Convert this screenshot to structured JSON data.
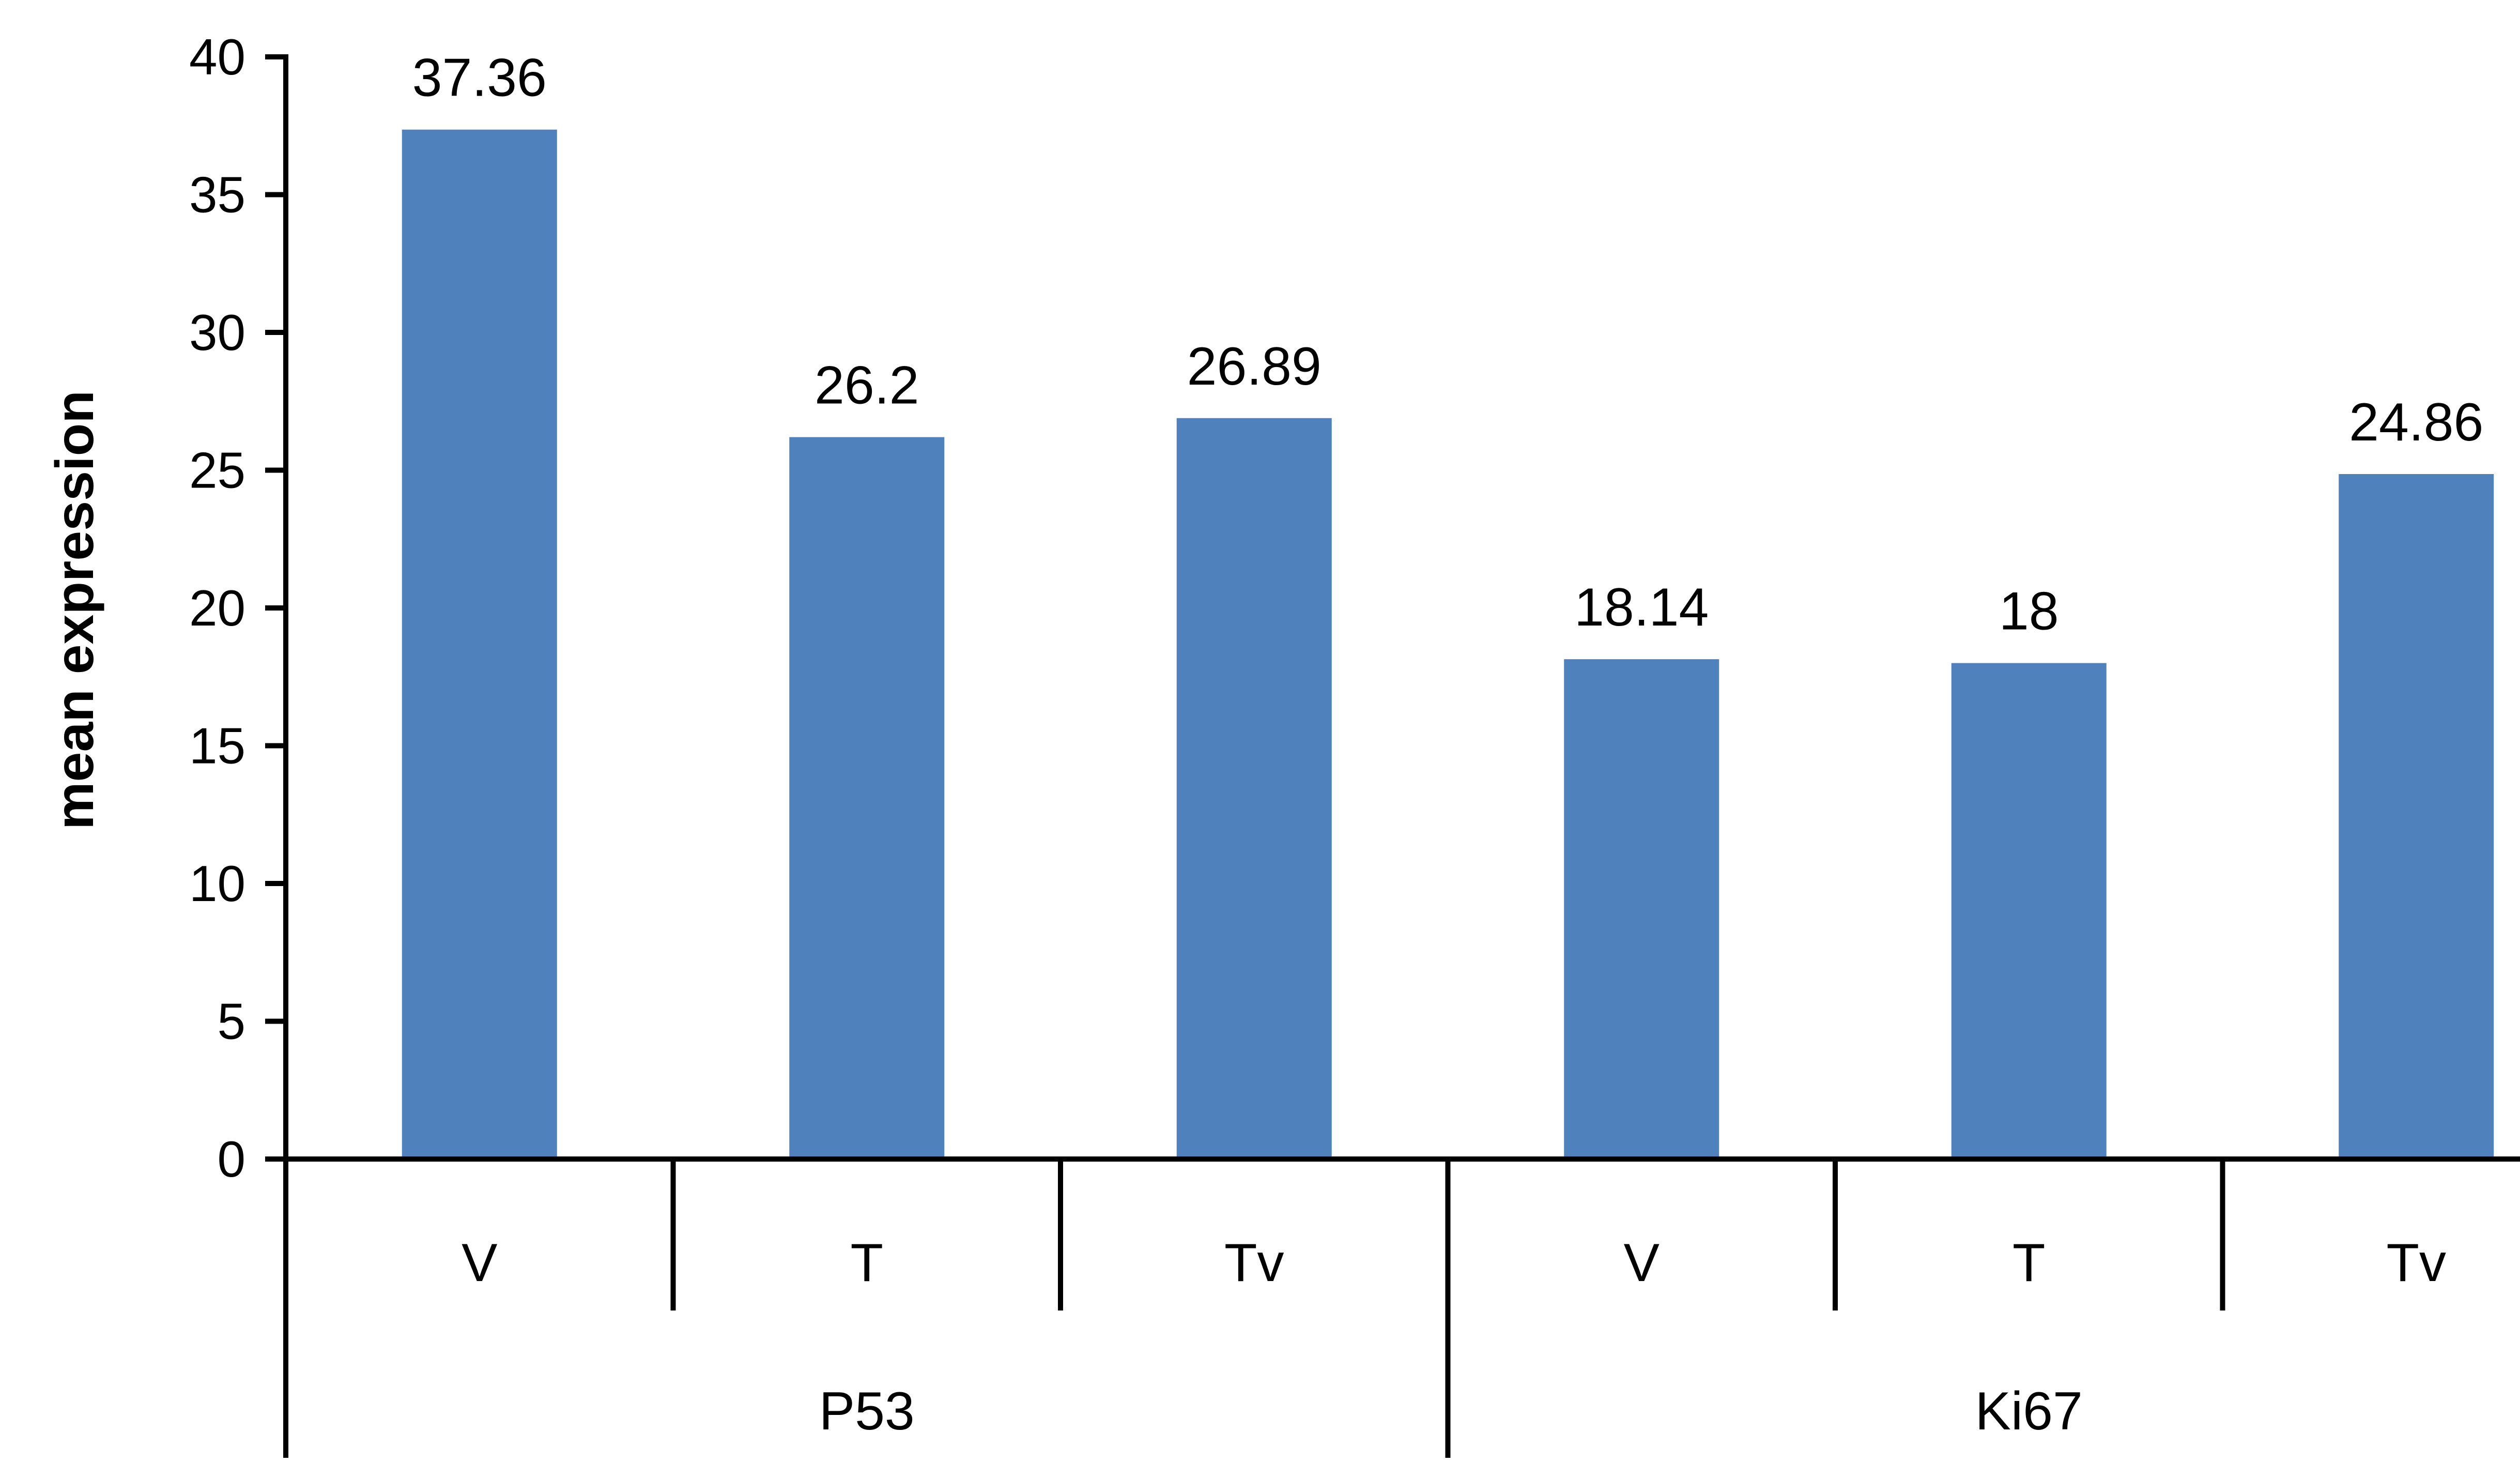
{
  "chart_data": {
    "type": "bar",
    "ylabel": "mean expression",
    "ylim": [
      0,
      40
    ],
    "ytick_step": 5,
    "yticks": [
      "0",
      "5",
      "10",
      "15",
      "20",
      "25",
      "30",
      "35",
      "40"
    ],
    "groups": [
      {
        "name": "P53",
        "categories": [
          "V",
          "T",
          "Tv"
        ],
        "values": [
          37.36,
          26.2,
          26.89
        ],
        "labels": [
          "37.36",
          "26.2",
          "26.89"
        ]
      },
      {
        "name": "Ki67",
        "categories": [
          "V",
          "T",
          "Tv"
        ],
        "values": [
          18.14,
          18,
          24.86
        ],
        "labels": [
          "18.14",
          "18",
          "24.86"
        ]
      }
    ],
    "bar_color": "#4f81bd",
    "grid": false,
    "legend": "none"
  }
}
